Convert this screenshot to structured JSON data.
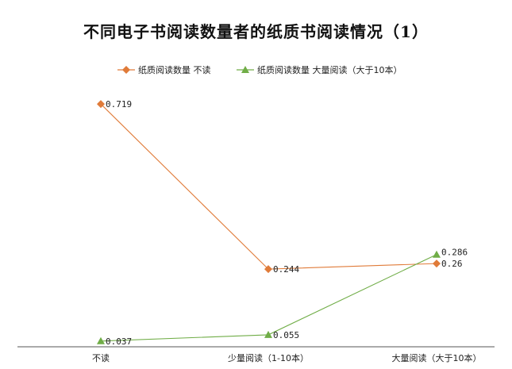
{
  "chart_data": {
    "type": "line",
    "title": "不同电子书阅读数量者的纸质书阅读情况（1）",
    "categories": [
      "不读",
      "少量阅读（1-10本）",
      "大量阅读（大于10本）"
    ],
    "series": [
      {
        "name": "纸质阅读数量 不读",
        "values": [
          0.719,
          0.244,
          0.26
        ],
        "labels": [
          "0.719",
          "0.244",
          "0.26"
        ],
        "color": "#e07b39",
        "marker": "diamond"
      },
      {
        "name": "纸质阅读数量 大量阅读（大于10本）",
        "values": [
          0.037,
          0.055,
          0.286
        ],
        "labels": [
          "0.037",
          "0.055",
          "0.286"
        ],
        "color": "#70ad47",
        "marker": "triangle"
      }
    ],
    "xlabel": "",
    "ylabel": "",
    "ylim": [
      0,
      0.8
    ],
    "grid": false,
    "legend_position": "top"
  }
}
